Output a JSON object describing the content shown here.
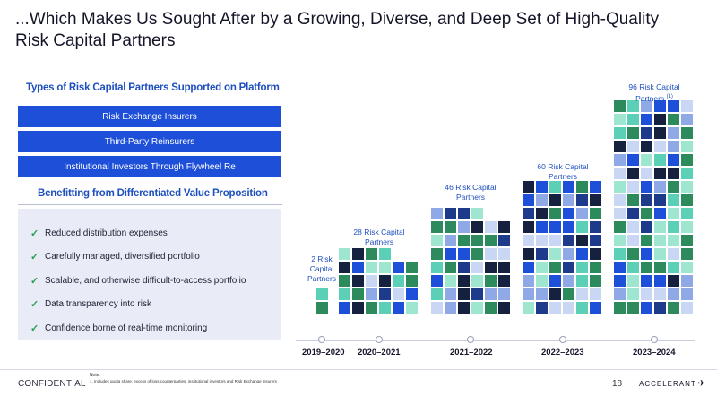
{
  "slide": {
    "title": "...Which Makes Us Sought After by a Growing, Diverse, and Deep Set of High-Quality Risk Capital Partners",
    "page_number": "18",
    "confidential": "CONFIDENTIAL",
    "logo_text": "ACCELERANT",
    "note_heading": "Note:",
    "note_text": "1.   Includes quota share, excess of loss counterparties, institutional investors and Risk Exchange insurers"
  },
  "types": {
    "heading": "Types of Risk Capital Partners Supported on Platform",
    "items": [
      "Risk Exchange Insurers",
      "Third-Party Reinsurers",
      "Institutional Investors Through Flywheel Re"
    ]
  },
  "benefits": {
    "heading": "Benefitting from Differentiated Value Proposition",
    "items": [
      "Reduced distribution expenses",
      "Carefully managed, diversified portfolio",
      "Scalable, and otherwise difficult-to-access portfolio",
      "Data transparency into risk",
      "Confidence borne of real-time monitoring"
    ]
  },
  "chart_data": {
    "type": "bar",
    "categories": [
      "2019–2020",
      "2020–2021",
      "2021–2022",
      "2022–2023",
      "2023–2024"
    ],
    "values": [
      2,
      28,
      46,
      60,
      96
    ],
    "bar_labels": [
      [
        "2 Risk",
        "Capital",
        "Partners"
      ],
      [
        "28 Risk Capital",
        "Partners"
      ],
      [
        "46 Risk Capital",
        "Partners"
      ],
      [
        "60 Risk Capital",
        "Partners"
      ],
      [
        "96 Risk Capital",
        "Partners"
      ]
    ],
    "last_label_footnote": "(1)",
    "palette": [
      "#1d4fd8",
      "#15213f",
      "#8fa9e6",
      "#2d8a5d",
      "#5ccfb7",
      "#c9d7f5",
      "#1e3a8a",
      "#9ee6cf"
    ]
  }
}
